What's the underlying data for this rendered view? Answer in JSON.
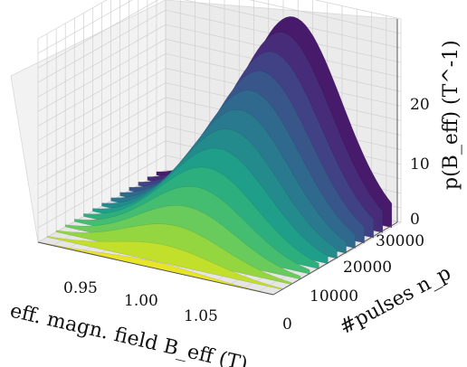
{
  "chart_data": {
    "type": "surface",
    "title": "",
    "xlabel": "eff. magn. field B_eff (T)",
    "ylabel": "#pulses n_p",
    "zlabel": "p(B_eff) (T^-1)",
    "x_ticks": [
      "0.95",
      "1.00",
      "1.05"
    ],
    "y_ticks": [
      "0",
      "10000",
      "20000",
      "30000"
    ],
    "z_ticks": [
      "0",
      "10",
      "20"
    ],
    "xlim": [
      0.92,
      1.09
    ],
    "ylim": [
      0,
      35000
    ],
    "zlim": [
      0,
      28
    ],
    "colormap": "viridis",
    "grid": true,
    "series": [
      {
        "n_pulses": 0,
        "peak_B": 1.003,
        "peak_p": 0.9
      },
      {
        "n_pulses": 2500,
        "peak_B": 1.005,
        "peak_p": 2.5
      },
      {
        "n_pulses": 5000,
        "peak_B": 1.006,
        "peak_p": 4.5
      },
      {
        "n_pulses": 7500,
        "peak_B": 1.008,
        "peak_p": 6.5
      },
      {
        "n_pulses": 10000,
        "peak_B": 1.009,
        "peak_p": 8.5
      },
      {
        "n_pulses": 12500,
        "peak_B": 1.01,
        "peak_p": 10.5
      },
      {
        "n_pulses": 15000,
        "peak_B": 1.012,
        "peak_p": 12.5
      },
      {
        "n_pulses": 17500,
        "peak_B": 1.013,
        "peak_p": 14.5
      },
      {
        "n_pulses": 20000,
        "peak_B": 1.014,
        "peak_p": 16.5
      },
      {
        "n_pulses": 22500,
        "peak_B": 1.015,
        "peak_p": 18.5
      },
      {
        "n_pulses": 25000,
        "peak_B": 1.016,
        "peak_p": 20.5
      },
      {
        "n_pulses": 27500,
        "peak_B": 1.017,
        "peak_p": 22.5
      },
      {
        "n_pulses": 30000,
        "peak_B": 1.018,
        "peak_p": 24.5
      },
      {
        "n_pulses": 32500,
        "peak_B": 1.019,
        "peak_p": 26.0
      }
    ]
  }
}
